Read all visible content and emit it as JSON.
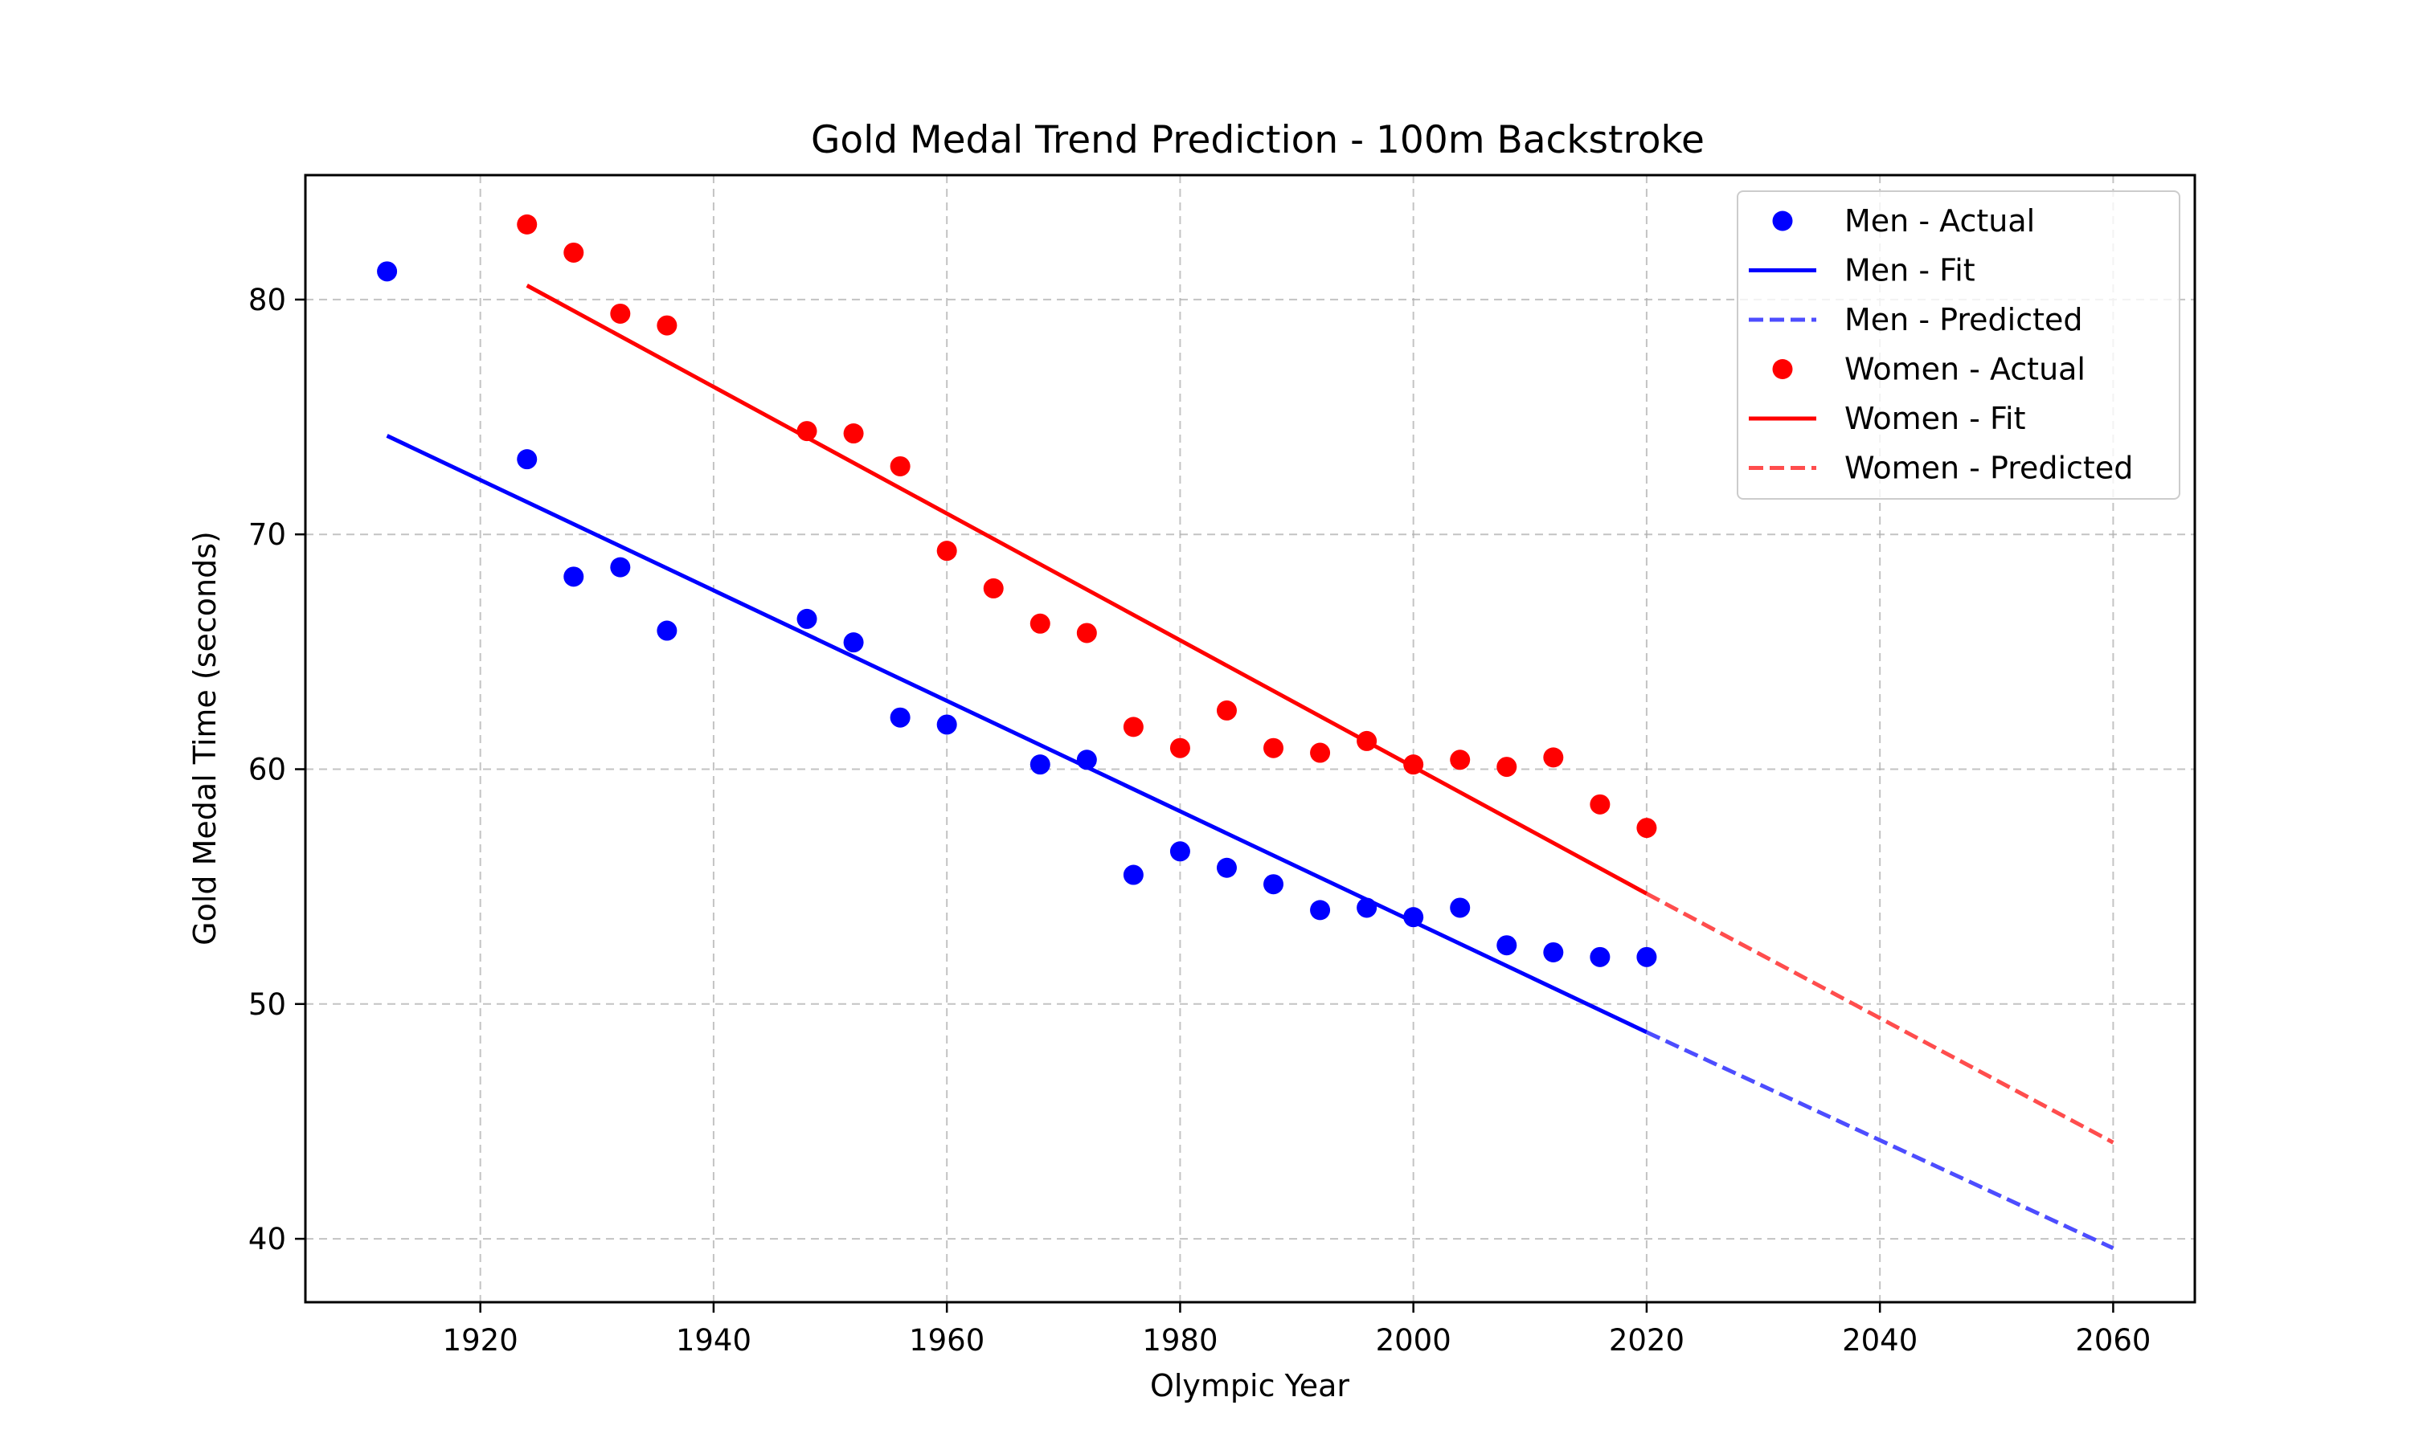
{
  "chart_data": {
    "type": "scatter",
    "title": "Gold Medal Trend Prediction - 100m Backstroke",
    "xlabel": "Olympic Year",
    "ylabel": "Gold Medal Time (seconds)",
    "xlim": [
      1905,
      2067
    ],
    "ylim": [
      37.3,
      85.3
    ],
    "xticks": [
      1920,
      1940,
      1960,
      1980,
      2000,
      2020,
      2040,
      2060
    ],
    "yticks": [
      40,
      50,
      60,
      70,
      80
    ],
    "grid": true,
    "legend_position": "top-right",
    "series": [
      {
        "name": "Men - Actual",
        "kind": "scatter",
        "color": "#0000ff",
        "x": [
          1912,
          1924,
          1928,
          1932,
          1936,
          1948,
          1952,
          1956,
          1960,
          1968,
          1972,
          1976,
          1980,
          1984,
          1988,
          1992,
          1996,
          2000,
          2004,
          2008,
          2012,
          2016,
          2020
        ],
        "y": [
          81.2,
          73.2,
          68.2,
          68.6,
          65.9,
          66.4,
          65.4,
          62.2,
          61.9,
          60.2,
          60.4,
          55.5,
          56.5,
          55.8,
          55.1,
          54.0,
          54.1,
          53.7,
          54.1,
          52.5,
          52.2,
          52.0,
          52.0
        ]
      },
      {
        "name": "Men - Fit",
        "kind": "line",
        "color": "#0000ff",
        "dash": "solid",
        "x": [
          1912,
          2020
        ],
        "y": [
          74.2,
          48.8
        ]
      },
      {
        "name": "Men - Predicted",
        "kind": "line",
        "color": "#4d4dff",
        "dash": "dashed",
        "x": [
          2020,
          2060
        ],
        "y": [
          48.8,
          39.6
        ]
      },
      {
        "name": "Women - Actual",
        "kind": "scatter",
        "color": "#ff0000",
        "x": [
          1924,
          1928,
          1932,
          1936,
          1948,
          1952,
          1956,
          1960,
          1964,
          1968,
          1972,
          1976,
          1980,
          1984,
          1988,
          1992,
          1996,
          2000,
          2004,
          2008,
          2012,
          2016,
          2020
        ],
        "y": [
          83.2,
          82.0,
          79.4,
          78.9,
          74.4,
          74.3,
          72.9,
          69.3,
          67.7,
          66.2,
          65.8,
          61.8,
          60.9,
          62.5,
          60.9,
          60.7,
          61.2,
          60.2,
          60.4,
          60.1,
          60.5,
          58.5,
          57.5
        ]
      },
      {
        "name": "Women - Fit",
        "kind": "line",
        "color": "#ff0000",
        "dash": "solid",
        "x": [
          1924,
          2020
        ],
        "y": [
          80.6,
          54.7
        ]
      },
      {
        "name": "Women - Predicted",
        "kind": "line",
        "color": "#ff4d4d",
        "dash": "dashed",
        "x": [
          2020,
          2060
        ],
        "y": [
          54.7,
          44.1
        ]
      }
    ]
  }
}
